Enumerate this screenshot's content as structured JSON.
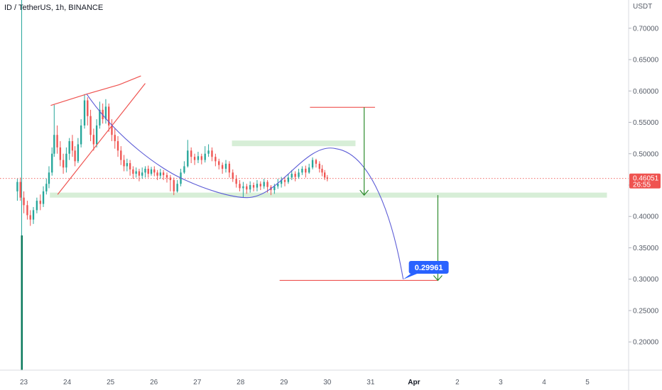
{
  "header": {
    "symbol": "ID / TetherUS, 1h, BINANCE"
  },
  "chart_data": {
    "type": "candlestick",
    "title": "ID / TetherUS, 1h, BINANCE",
    "y_unit": "USDT",
    "ylim": [
      0.155,
      0.745
    ],
    "y_ticks": [
      0.7,
      0.65,
      0.6,
      0.55,
      0.5,
      0.45,
      0.4,
      0.35,
      0.3,
      0.25,
      0.2
    ],
    "x_ticks": [
      {
        "label": "23",
        "day": 23
      },
      {
        "label": "24",
        "day": 24
      },
      {
        "label": "25",
        "day": 25
      },
      {
        "label": "26",
        "day": 26
      },
      {
        "label": "27",
        "day": 27
      },
      {
        "label": "28",
        "day": 28
      },
      {
        "label": "29",
        "day": 29
      },
      {
        "label": "30",
        "day": 30
      },
      {
        "label": "31",
        "day": 31
      },
      {
        "label": "Apr",
        "day": 32,
        "bold": true
      },
      {
        "label": "2",
        "day": 33
      },
      {
        "label": "3",
        "day": 34
      },
      {
        "label": "4",
        "day": 35
      },
      {
        "label": "5",
        "day": 36
      }
    ],
    "xlim": [
      22.45,
      36.95
    ],
    "current_price": {
      "value": 0.46051,
      "label": "0.46051",
      "countdown": "26:55"
    },
    "target_label": {
      "value": 0.29961,
      "label": "0.29961",
      "day": 31.75
    },
    "candles": [
      [
        22.85,
        0.44,
        0.455,
        0.46,
        0.425
      ],
      [
        22.92,
        0.455,
        0.43,
        0.462,
        0.425
      ],
      [
        23.0,
        0.43,
        0.418,
        0.44,
        0.405
      ],
      [
        23.08,
        0.418,
        0.402,
        0.425,
        0.395
      ],
      [
        23.15,
        0.402,
        0.395,
        0.41,
        0.385
      ],
      [
        23.22,
        0.395,
        0.41,
        0.415,
        0.388
      ],
      [
        23.3,
        0.41,
        0.425,
        0.43,
        0.405
      ],
      [
        23.38,
        0.425,
        0.42,
        0.435,
        0.41
      ],
      [
        23.45,
        0.42,
        0.44,
        0.448,
        0.415
      ],
      [
        23.52,
        0.44,
        0.452,
        0.46,
        0.435
      ],
      [
        23.58,
        0.452,
        0.47,
        0.48,
        0.445
      ],
      [
        23.65,
        0.47,
        0.5,
        0.51,
        0.465
      ],
      [
        23.7,
        0.5,
        0.53,
        0.578,
        0.495
      ],
      [
        23.77,
        0.53,
        0.51,
        0.545,
        0.5
      ],
      [
        23.84,
        0.51,
        0.49,
        0.52,
        0.48
      ],
      [
        23.91,
        0.49,
        0.478,
        0.5,
        0.468
      ],
      [
        23.98,
        0.478,
        0.5,
        0.51,
        0.47
      ],
      [
        24.05,
        0.5,
        0.52,
        0.525,
        0.49
      ],
      [
        24.12,
        0.52,
        0.505,
        0.53,
        0.495
      ],
      [
        24.18,
        0.505,
        0.488,
        0.512,
        0.48
      ],
      [
        24.25,
        0.488,
        0.515,
        0.525,
        0.485
      ],
      [
        24.32,
        0.515,
        0.545,
        0.555,
        0.51
      ],
      [
        24.4,
        0.545,
        0.585,
        0.595,
        0.54
      ],
      [
        24.47,
        0.585,
        0.56,
        0.59,
        0.545
      ],
      [
        24.54,
        0.56,
        0.53,
        0.57,
        0.52
      ],
      [
        24.61,
        0.53,
        0.515,
        0.54,
        0.505
      ],
      [
        24.68,
        0.515,
        0.545,
        0.555,
        0.51
      ],
      [
        24.75,
        0.545,
        0.57,
        0.583,
        0.54
      ],
      [
        24.82,
        0.57,
        0.555,
        0.58,
        0.548
      ],
      [
        24.89,
        0.555,
        0.575,
        0.587,
        0.548
      ],
      [
        24.96,
        0.575,
        0.545,
        0.58,
        0.535
      ],
      [
        25.03,
        0.545,
        0.53,
        0.555,
        0.52
      ],
      [
        25.1,
        0.53,
        0.52,
        0.54,
        0.508
      ],
      [
        25.17,
        0.52,
        0.505,
        0.528,
        0.495
      ],
      [
        25.24,
        0.505,
        0.49,
        0.512,
        0.482
      ],
      [
        25.31,
        0.49,
        0.48,
        0.498,
        0.472
      ],
      [
        25.38,
        0.48,
        0.485,
        0.492,
        0.472
      ],
      [
        25.45,
        0.485,
        0.475,
        0.49,
        0.465
      ],
      [
        25.52,
        0.475,
        0.468,
        0.48,
        0.46
      ],
      [
        25.59,
        0.468,
        0.472,
        0.478,
        0.462
      ],
      [
        25.66,
        0.472,
        0.465,
        0.476,
        0.456
      ],
      [
        25.73,
        0.465,
        0.47,
        0.478,
        0.46
      ],
      [
        25.8,
        0.47,
        0.476,
        0.48,
        0.462
      ],
      [
        25.87,
        0.476,
        0.468,
        0.481,
        0.462
      ],
      [
        25.94,
        0.468,
        0.475,
        0.479,
        0.465
      ],
      [
        26.01,
        0.475,
        0.47,
        0.48,
        0.464
      ],
      [
        26.08,
        0.47,
        0.465,
        0.474,
        0.458
      ],
      [
        26.15,
        0.465,
        0.47,
        0.476,
        0.46
      ],
      [
        26.22,
        0.47,
        0.466,
        0.474,
        0.458
      ],
      [
        26.3,
        0.466,
        0.462,
        0.47,
        0.454
      ],
      [
        26.38,
        0.462,
        0.458,
        0.466,
        0.44
      ],
      [
        26.46,
        0.458,
        0.44,
        0.462,
        0.434
      ],
      [
        26.54,
        0.44,
        0.452,
        0.458,
        0.438
      ],
      [
        26.62,
        0.452,
        0.47,
        0.476,
        0.448
      ],
      [
        26.7,
        0.47,
        0.48,
        0.488,
        0.468
      ],
      [
        26.78,
        0.48,
        0.505,
        0.522,
        0.478
      ],
      [
        26.86,
        0.505,
        0.495,
        0.51,
        0.485
      ],
      [
        26.94,
        0.495,
        0.49,
        0.5,
        0.482
      ],
      [
        27.02,
        0.49,
        0.496,
        0.503,
        0.485
      ],
      [
        27.1,
        0.496,
        0.49,
        0.5,
        0.483
      ],
      [
        27.18,
        0.49,
        0.5,
        0.512,
        0.486
      ],
      [
        27.26,
        0.5,
        0.505,
        0.515,
        0.495
      ],
      [
        27.34,
        0.505,
        0.495,
        0.51,
        0.488
      ],
      [
        27.42,
        0.495,
        0.488,
        0.5,
        0.48
      ],
      [
        27.5,
        0.488,
        0.482,
        0.492,
        0.475
      ],
      [
        27.58,
        0.482,
        0.476,
        0.486,
        0.468
      ],
      [
        27.66,
        0.476,
        0.484,
        0.49,
        0.47
      ],
      [
        27.74,
        0.484,
        0.47,
        0.488,
        0.462
      ],
      [
        27.82,
        0.47,
        0.46,
        0.475,
        0.455
      ],
      [
        27.9,
        0.46,
        0.452,
        0.466,
        0.446
      ],
      [
        27.98,
        0.452,
        0.445,
        0.458,
        0.44
      ],
      [
        28.06,
        0.445,
        0.448,
        0.455,
        0.43
      ],
      [
        28.14,
        0.448,
        0.443,
        0.452,
        0.436
      ],
      [
        28.22,
        0.443,
        0.45,
        0.456,
        0.438
      ],
      [
        28.3,
        0.45,
        0.446,
        0.454,
        0.44
      ],
      [
        28.38,
        0.446,
        0.452,
        0.458,
        0.44
      ],
      [
        28.46,
        0.452,
        0.448,
        0.456,
        0.442
      ],
      [
        28.54,
        0.448,
        0.455,
        0.46,
        0.444
      ],
      [
        28.62,
        0.455,
        0.447,
        0.458,
        0.438
      ],
      [
        28.7,
        0.447,
        0.442,
        0.45,
        0.434
      ],
      [
        28.78,
        0.442,
        0.448,
        0.452,
        0.436
      ],
      [
        28.86,
        0.448,
        0.452,
        0.46,
        0.444
      ],
      [
        28.94,
        0.452,
        0.458,
        0.463,
        0.446
      ],
      [
        29.02,
        0.458,
        0.455,
        0.462,
        0.448
      ],
      [
        29.1,
        0.455,
        0.462,
        0.468,
        0.452
      ],
      [
        29.18,
        0.462,
        0.468,
        0.474,
        0.458
      ],
      [
        29.26,
        0.468,
        0.463,
        0.472,
        0.456
      ],
      [
        29.34,
        0.463,
        0.47,
        0.476,
        0.46
      ],
      [
        29.42,
        0.47,
        0.476,
        0.48,
        0.466
      ],
      [
        29.5,
        0.476,
        0.47,
        0.481,
        0.462
      ],
      [
        29.58,
        0.47,
        0.478,
        0.484,
        0.468
      ],
      [
        29.66,
        0.478,
        0.49,
        0.494,
        0.475
      ],
      [
        29.74,
        0.49,
        0.484,
        0.492,
        0.478
      ],
      [
        29.82,
        0.484,
        0.476,
        0.488,
        0.47
      ],
      [
        29.88,
        0.476,
        0.47,
        0.482,
        0.464
      ],
      [
        29.94,
        0.47,
        0.462,
        0.474,
        0.458
      ],
      [
        30.0,
        0.462,
        0.46,
        0.466,
        0.456
      ]
    ],
    "annotations": {
      "wedge_upper": [
        [
          23.62,
          0.577
        ],
        [
          24.45,
          0.595
        ],
        [
          25.2,
          0.61
        ],
        [
          25.7,
          0.624
        ]
      ],
      "wedge_lower": [
        [
          23.78,
          0.435
        ],
        [
          25.8,
          0.612
        ]
      ],
      "support_zone": {
        "x0": 23.6,
        "x1": 36.45,
        "y0": 0.43,
        "y1": 0.438
      },
      "resistance_zone": {
        "x0": 27.8,
        "x1": 30.65,
        "y0": 0.512,
        "y1": 0.521
      },
      "upper_hline": {
        "x0": 29.6,
        "x1": 31.1,
        "y": 0.574
      },
      "lower_hline": {
        "x0": 28.9,
        "x1": 32.55,
        "y": 0.298
      },
      "arrow_down_1": {
        "x": 30.85,
        "y0": 0.574,
        "y1": 0.434
      },
      "arrow_down_2": {
        "x": 32.55,
        "y0": 0.434,
        "y1": 0.298
      },
      "left_marker_day": 22.95
    }
  }
}
